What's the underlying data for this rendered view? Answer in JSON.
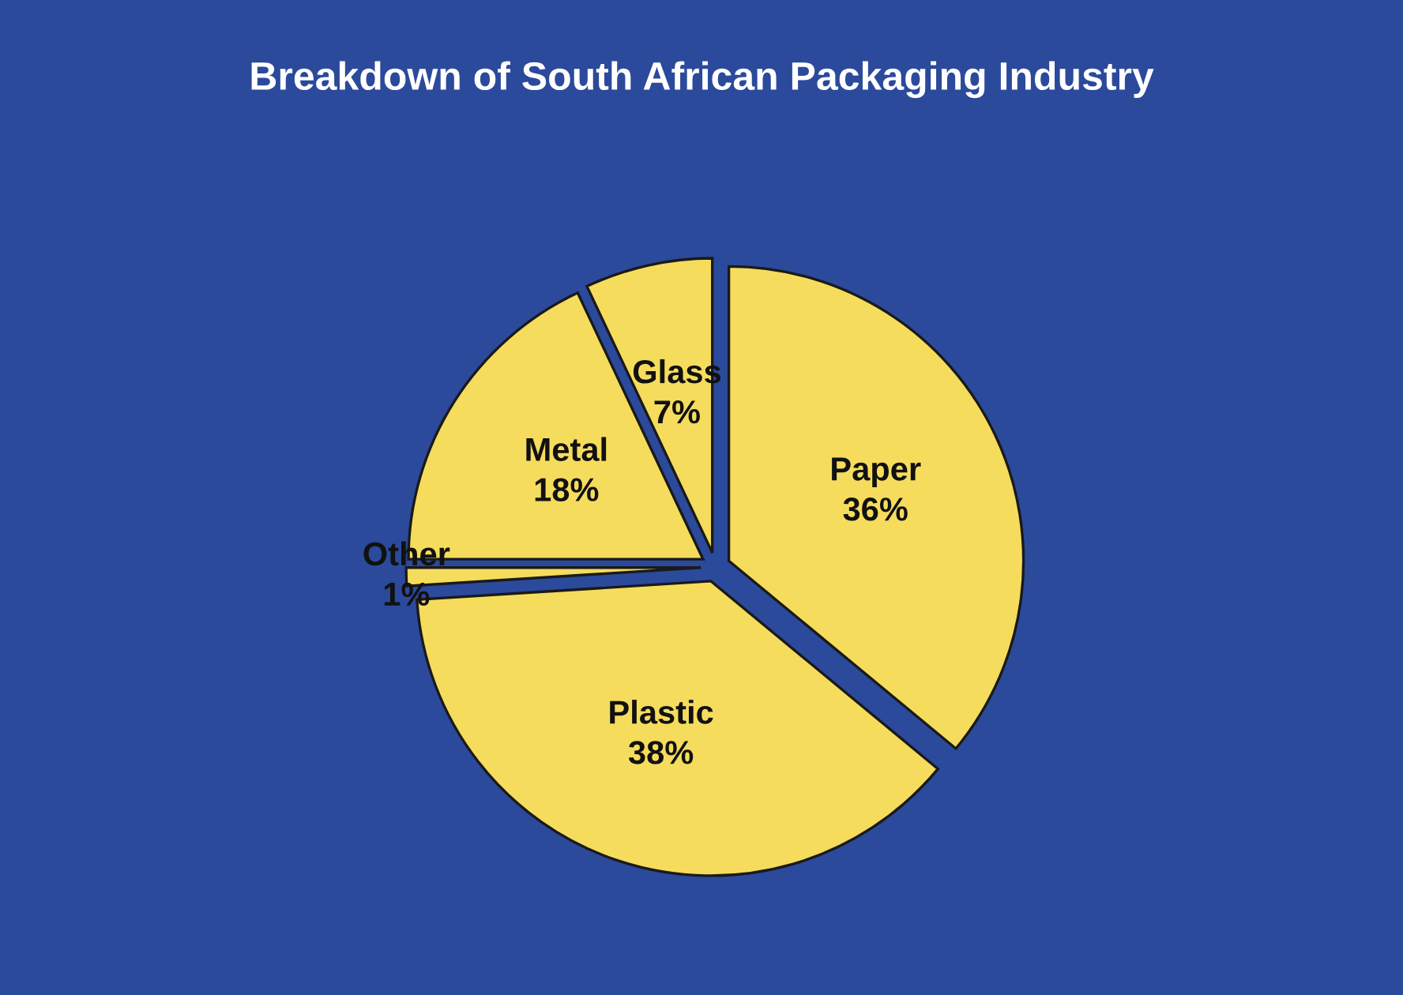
{
  "chart_data": {
    "type": "pie",
    "title": "Breakdown of South African Packaging Industry",
    "categories": [
      "Paper",
      "Plastic",
      "Other",
      "Metal",
      "Glass"
    ],
    "values": [
      36,
      38,
      1,
      18,
      7
    ],
    "value_labels": [
      "36%",
      "38%",
      "1%",
      "18%",
      "7%"
    ],
    "colors": [
      "#f5dc5c",
      "#f5dc5c",
      "#f5dc5c",
      "#f5dc5c",
      "#f5dc5c"
    ],
    "legend": false
  }
}
